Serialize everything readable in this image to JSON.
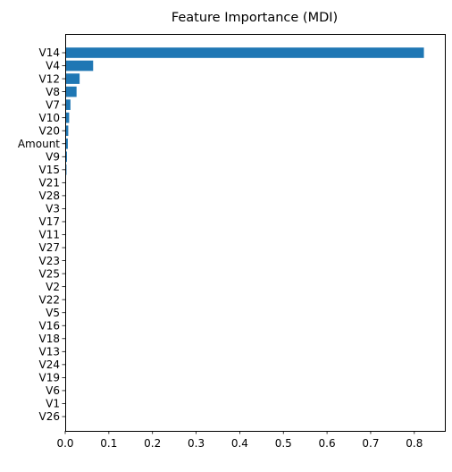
{
  "chart_data": {
    "type": "bar",
    "orientation": "horizontal",
    "title": "Feature Importance (MDI)",
    "xlabel": "",
    "ylabel": "",
    "xlim": [
      0,
      0.87
    ],
    "x_ticks": [
      0.0,
      0.1,
      0.2,
      0.3,
      0.4,
      0.5,
      0.6,
      0.7,
      0.8
    ],
    "x_tick_labels": [
      "0.0",
      "0.1",
      "0.2",
      "0.3",
      "0.4",
      "0.5",
      "0.6",
      "0.7",
      "0.8"
    ],
    "grid": false,
    "bar_color": "#1f77b4",
    "categories": [
      "V14",
      "V4",
      "V12",
      "V8",
      "V7",
      "V10",
      "V20",
      "Amount",
      "V9",
      "V15",
      "V21",
      "V28",
      "V3",
      "V17",
      "V11",
      "V27",
      "V23",
      "V25",
      "V2",
      "V22",
      "V5",
      "V16",
      "V18",
      "V13",
      "V24",
      "V19",
      "V6",
      "V1",
      "V26"
    ],
    "values": [
      0.822,
      0.064,
      0.033,
      0.026,
      0.012,
      0.009,
      0.007,
      0.006,
      0.004,
      0.003,
      0.0012,
      0.001,
      0.0008,
      0.0007,
      0.0006,
      0.0005,
      0.0004,
      0.0003,
      0.0003,
      0.0002,
      0.0002,
      0.0002,
      0.0001,
      0.0001,
      0.0001,
      0.0001,
      0.0001,
      0.0001,
      0.0
    ]
  }
}
